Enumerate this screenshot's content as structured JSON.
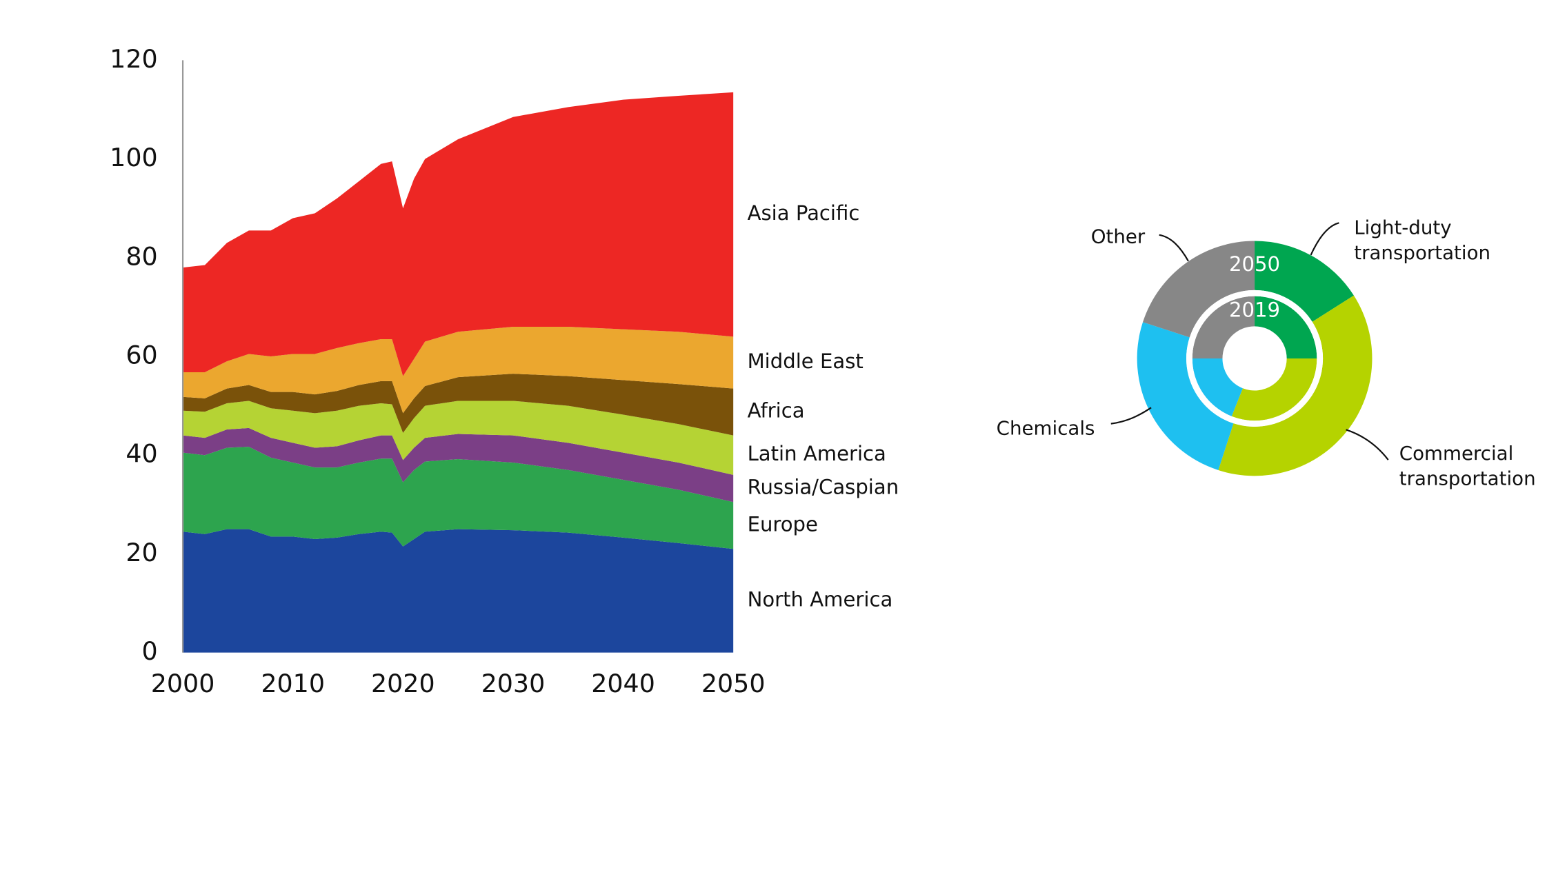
{
  "chart_data": [
    {
      "type": "stacked-area",
      "x": [
        2000,
        2002,
        2004,
        2006,
        2008,
        2010,
        2012,
        2014,
        2016,
        2018,
        2019,
        2020,
        2021,
        2022,
        2025,
        2030,
        2035,
        2040,
        2045,
        2050
      ],
      "series": [
        {
          "name": "North America",
          "color": "#1c469d",
          "values": [
            24.5,
            24,
            25,
            25,
            23.5,
            23.5,
            23,
            23.3,
            24,
            24.5,
            24.3,
            21.5,
            23,
            24.5,
            25,
            24.8,
            24.3,
            23.3,
            22.2,
            21
          ]
        },
        {
          "name": "Europe",
          "color": "#2da44e",
          "values": [
            16,
            16,
            16.5,
            16.7,
            16,
            15,
            14.5,
            14.2,
            14.5,
            14.8,
            15,
            13,
            14,
            14.2,
            14.2,
            13.7,
            12.7,
            11.7,
            10.8,
            9.5
          ]
        },
        {
          "name": "Russia/Caspian",
          "color": "#7b3f86",
          "values": [
            3.5,
            3.5,
            3.7,
            3.8,
            4,
            4,
            4,
            4.3,
            4.5,
            4.7,
            4.7,
            4.5,
            4.5,
            4.8,
            5.1,
            5.5,
            5.5,
            5.5,
            5.5,
            5.5
          ]
        },
        {
          "name": "Latin America",
          "color": "#b5d334",
          "values": [
            5,
            5.3,
            5.3,
            5.5,
            6,
            6.5,
            7,
            7.2,
            7,
            6.5,
            6.3,
            5.5,
            6,
            6.5,
            6.7,
            7,
            7.5,
            7.7,
            7.8,
            8
          ]
        },
        {
          "name": "Africa",
          "color": "#7a520a",
          "values": [
            2.8,
            2.7,
            3,
            3.2,
            3.3,
            3.8,
            3.8,
            4,
            4.2,
            4.5,
            4.7,
            4,
            4,
            4,
            4.8,
            5.5,
            6,
            7,
            8.1,
            9.5
          ]
        },
        {
          "name": "Middle East",
          "color": "#eba72f",
          "values": [
            5,
            5.3,
            5.5,
            6.3,
            7.2,
            7.7,
            8.2,
            8.7,
            8.5,
            8.5,
            8.5,
            7.5,
            8,
            9,
            9.2,
            9.5,
            10,
            10.3,
            10.6,
            10.5
          ]
        },
        {
          "name": "Asia Pacific",
          "color": "#ed2724",
          "values": [
            21.2,
            21.7,
            24,
            25,
            25.5,
            27.5,
            28.5,
            30.3,
            32.8,
            35.5,
            36,
            34,
            36.5,
            37,
            39,
            42.5,
            44.5,
            46.5,
            47.8,
            49.5
          ]
        }
      ],
      "xlim": [
        2000,
        2050
      ],
      "xticks": [
        2000,
        2010,
        2020,
        2030,
        2040,
        2050
      ],
      "ylim": [
        0,
        120
      ],
      "yticks": [
        0,
        20,
        40,
        60,
        80,
        100,
        120
      ]
    },
    {
      "type": "donut",
      "categories": [
        "Light-duty transportation",
        "Commercial transportation",
        "Chemicals",
        "Other"
      ],
      "colors": [
        "#00a650",
        "#b5d300",
        "#1ec0f0",
        "#878787"
      ],
      "series": [
        {
          "name": "2050",
          "values": [
            16,
            39,
            25,
            20
          ]
        },
        {
          "name": "2019",
          "values": [
            25,
            31,
            19,
            25
          ]
        }
      ]
    }
  ]
}
